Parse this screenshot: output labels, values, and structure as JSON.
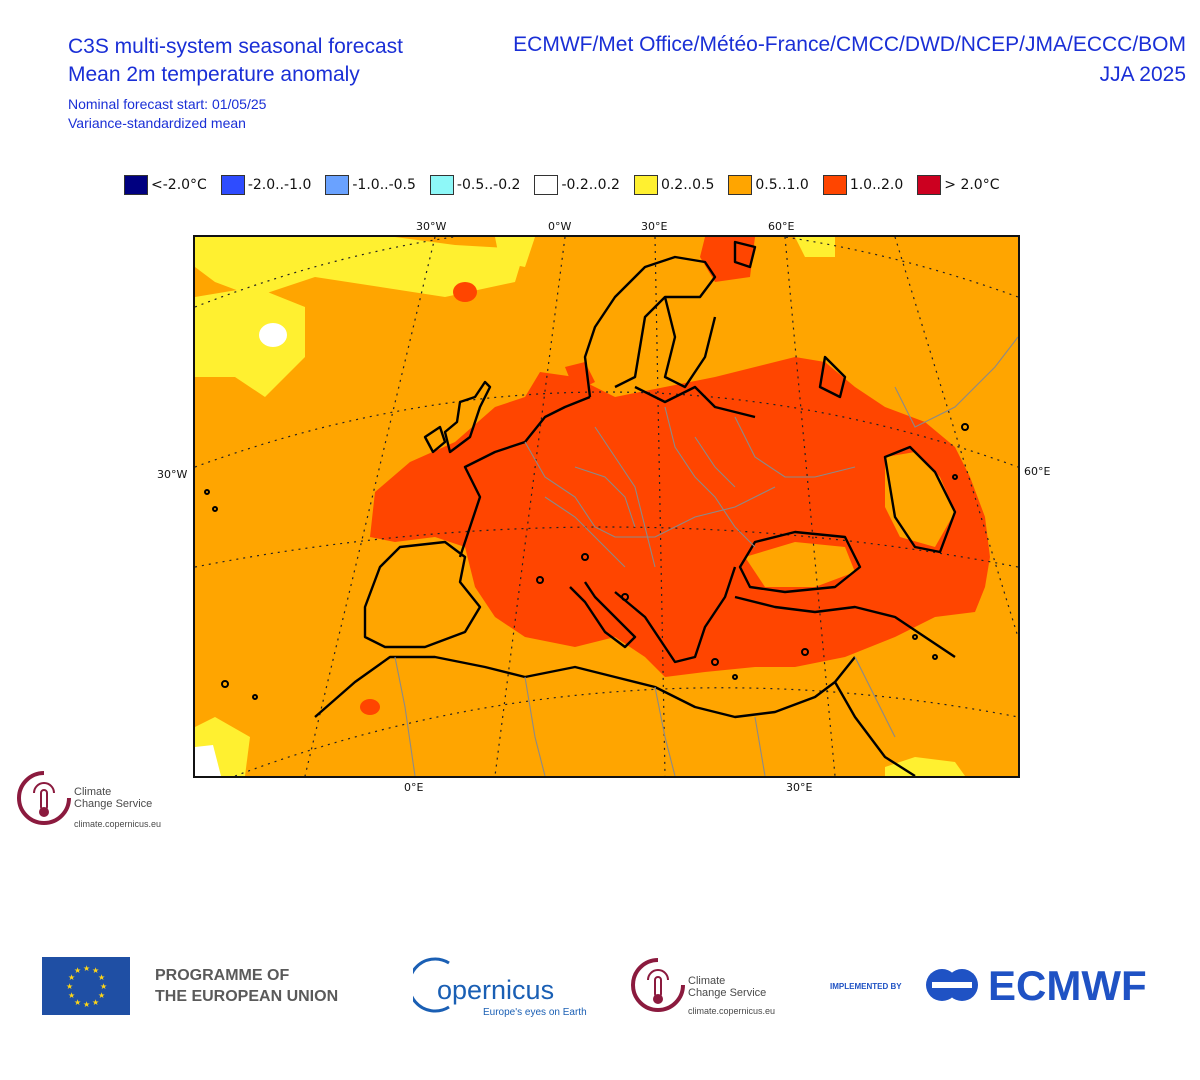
{
  "header": {
    "title_line1": "C3S multi-system seasonal forecast",
    "title_line2": "Mean 2m temperature anomaly",
    "subtitle_line1": "Nominal forecast start: 01/05/25",
    "subtitle_line2": "Variance-standardized mean",
    "systems": "ECMWF/Met Office/Météo-France/CMCC/DWD/NCEP/JMA/ECCC/BOM",
    "season": "JJA 2025"
  },
  "legend": [
    {
      "label": "<-2.0°C",
      "color": "#000080"
    },
    {
      "label": "-2.0..-1.0",
      "color": "#2e4cff"
    },
    {
      "label": "-1.0..-0.5",
      "color": "#6aa2ff"
    },
    {
      "label": "-0.5..-0.2",
      "color": "#8ef8f8"
    },
    {
      "label": "-0.2..0.2",
      "color": "#ffffff"
    },
    {
      "label": "0.2..0.5",
      "color": "#fff030"
    },
    {
      "label": "0.5..1.0",
      "color": "#ffa500"
    },
    {
      "label": "1.0..2.0",
      "color": "#ff4500"
    },
    {
      "label": "> 2.0°C",
      "color": "#cc0020"
    }
  ],
  "axis_labels": {
    "top": [
      "30°W",
      "0°W",
      "30°E",
      "60°E"
    ],
    "left": "30°W",
    "right": "60°E",
    "bottom": [
      "0°E",
      "30°E"
    ]
  },
  "logos": {
    "c3s_line1": "Climate",
    "c3s_line2": "Change Service",
    "c3s_url": "climate.copernicus.eu",
    "eu_line1": "PROGRAMME OF",
    "eu_line2": "THE EUROPEAN UNION",
    "copernicus": "opernicus",
    "copernicus_tagline": "Europe's eyes on Earth",
    "implemented_by": "IMPLEMENTED BY",
    "ecmwf": "ECMWF"
  }
}
